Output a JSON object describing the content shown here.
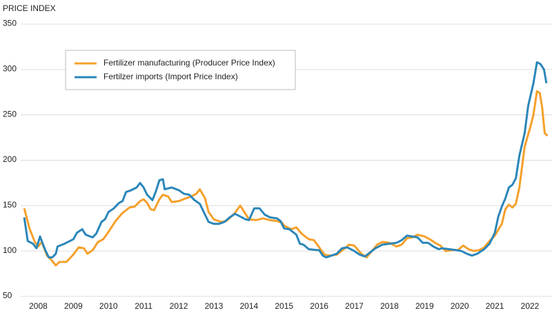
{
  "chart_data": {
    "type": "line",
    "y_label": "PRICE INDEX",
    "xlim": [
      2007.5,
      2022.55
    ],
    "xticks": [
      2008,
      2009,
      2010,
      2011,
      2012,
      2013,
      2014,
      2015,
      2016,
      2017,
      2018,
      2019,
      2020,
      2021,
      2022
    ],
    "ylim": [
      50,
      350
    ],
    "yticks": [
      50,
      100,
      150,
      200,
      250,
      300,
      350
    ],
    "grid": true,
    "legend": "upper left",
    "series": [
      {
        "name": "Fertilizer manufacturing (Producer Price Index)",
        "color": "#f5a02a",
        "x": [
          2007.6,
          2007.75,
          2007.9,
          2008.0,
          2008.1,
          2008.25,
          2008.4,
          2008.5,
          2008.6,
          2008.8,
          2009.0,
          2009.15,
          2009.3,
          2009.4,
          2009.55,
          2009.7,
          2009.85,
          2010.0,
          2010.2,
          2010.4,
          2010.6,
          2010.75,
          2010.9,
          2011.0,
          2011.1,
          2011.2,
          2011.3,
          2011.45,
          2011.55,
          2011.7,
          2011.8,
          2012.0,
          2012.2,
          2012.35,
          2012.5,
          2012.6,
          2012.75,
          2012.85,
          2013.0,
          2013.2,
          2013.35,
          2013.5,
          2013.6,
          2013.75,
          2013.9,
          2014.0,
          2014.2,
          2014.4,
          2014.6,
          2014.8,
          2014.95,
          2015.0,
          2015.2,
          2015.35,
          2015.5,
          2015.7,
          2015.85,
          2016.0,
          2016.15,
          2016.3,
          2016.5,
          2016.7,
          2016.85,
          2017.0,
          2017.2,
          2017.35,
          2017.5,
          2017.65,
          2017.8,
          2018.0,
          2018.2,
          2018.35,
          2018.5,
          2018.65,
          2018.8,
          2019.0,
          2019.15,
          2019.3,
          2019.45,
          2019.6,
          2019.8,
          2019.95,
          2020.1,
          2020.25,
          2020.4,
          2020.55,
          2020.7,
          2020.85,
          2021.0,
          2021.2,
          2021.3,
          2021.4,
          2021.5,
          2021.6,
          2021.7,
          2021.85,
          2022.0,
          2022.1,
          2022.2,
          2022.28,
          2022.35,
          2022.42,
          2022.5
        ],
        "values": [
          147,
          125,
          110,
          105,
          110,
          95,
          89,
          84,
          88,
          88,
          96,
          104,
          103,
          97,
          101,
          110,
          113,
          121,
          133,
          142,
          148,
          149,
          155,
          157,
          153,
          146,
          145,
          157,
          162,
          160,
          154,
          155,
          158,
          160,
          163,
          168,
          158,
          143,
          135,
          132,
          133,
          138,
          142,
          150,
          141,
          135,
          134,
          136,
          134,
          133,
          131,
          128,
          124,
          126,
          119,
          113,
          112,
          104,
          96,
          95,
          96,
          102,
          107,
          106,
          97,
          93,
          100,
          107,
          110,
          109,
          105,
          107,
          114,
          115,
          118,
          116,
          113,
          109,
          106,
          100,
          101,
          101,
          106,
          102,
          100,
          101,
          104,
          111,
          117,
          130,
          146,
          151,
          148,
          152,
          170,
          215,
          235,
          250,
          276,
          274,
          258,
          230,
          227
        ]
      },
      {
        "name": "Fertilzer imports (Import Price Index)",
        "color": "#2a86b9",
        "x": [
          2007.6,
          2007.7,
          2007.85,
          2007.95,
          2008.05,
          2008.2,
          2008.3,
          2008.4,
          2008.5,
          2008.55,
          2008.75,
          2009.0,
          2009.1,
          2009.25,
          2009.35,
          2009.55,
          2009.65,
          2009.8,
          2009.9,
          2010.0,
          2010.15,
          2010.3,
          2010.4,
          2010.5,
          2010.65,
          2010.8,
          2010.9,
          2011.0,
          2011.1,
          2011.25,
          2011.35,
          2011.45,
          2011.55,
          2011.6,
          2011.8,
          2012.0,
          2012.15,
          2012.3,
          2012.45,
          2012.6,
          2012.75,
          2012.85,
          2013.0,
          2013.15,
          2013.3,
          2013.45,
          2013.6,
          2013.75,
          2013.9,
          2014.0,
          2014.15,
          2014.3,
          2014.45,
          2014.6,
          2014.8,
          2014.9,
          2015.0,
          2015.15,
          2015.35,
          2015.45,
          2015.55,
          2015.7,
          2015.95,
          2016.0,
          2016.1,
          2016.2,
          2016.35,
          2016.5,
          2016.65,
          2016.8,
          2017.0,
          2017.15,
          2017.3,
          2017.5,
          2017.6,
          2017.8,
          2018.0,
          2018.2,
          2018.35,
          2018.5,
          2018.65,
          2018.8,
          2018.95,
          2019.1,
          2019.25,
          2019.4,
          2019.5,
          2019.7,
          2019.9,
          2020.05,
          2020.2,
          2020.35,
          2020.5,
          2020.7,
          2020.85,
          2021.0,
          2021.1,
          2021.2,
          2021.3,
          2021.4,
          2021.5,
          2021.6,
          2021.7,
          2021.85,
          2021.95,
          2022.1,
          2022.2,
          2022.3,
          2022.4,
          2022.47
        ],
        "values": [
          137,
          111,
          108,
          103,
          116,
          101,
          93,
          93,
          97,
          105,
          108,
          113,
          120,
          124,
          118,
          115,
          119,
          132,
          135,
          143,
          147,
          153,
          155,
          165,
          167,
          170,
          175,
          170,
          162,
          156,
          166,
          178,
          179,
          168,
          170,
          167,
          163,
          162,
          156,
          152,
          140,
          132,
          130,
          130,
          132,
          137,
          141,
          138,
          135,
          134,
          147,
          147,
          140,
          137,
          136,
          133,
          125,
          124,
          118,
          108,
          107,
          102,
          101,
          101,
          95,
          93,
          95,
          97,
          103,
          104,
          100,
          96,
          94,
          100,
          103,
          107,
          108,
          109,
          112,
          117,
          116,
          115,
          109,
          109,
          105,
          102,
          103,
          102,
          101,
          100,
          97,
          95,
          97,
          102,
          108,
          120,
          138,
          149,
          158,
          170,
          173,
          180,
          205,
          230,
          260,
          285,
          308,
          306,
          300,
          285
        ]
      }
    ]
  }
}
